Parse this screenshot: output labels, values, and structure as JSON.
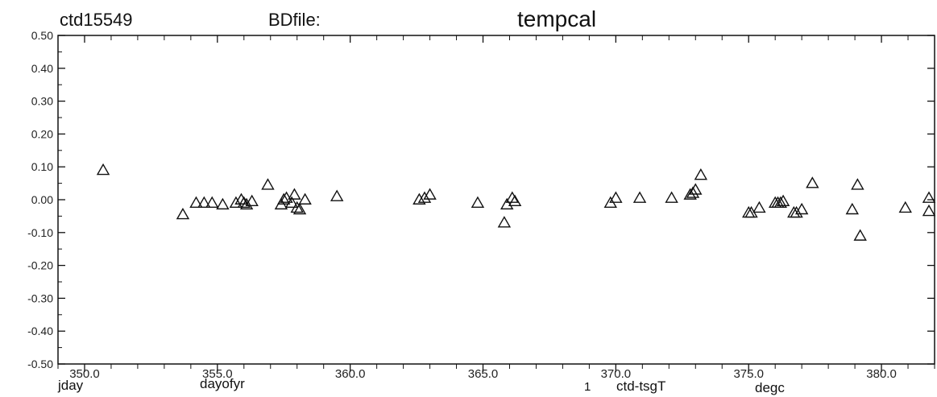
{
  "header": {
    "id_label": "ctd15549",
    "file_label": "BDfile:",
    "title": "tempcal"
  },
  "footer": {
    "x_unit_label": "jday",
    "x_name_label": "dayofyr",
    "series_index": "1",
    "series_name": "ctd-tsgT",
    "y_unit_label": "degc"
  },
  "chart_data": {
    "type": "scatter",
    "title": "tempcal",
    "xlabel": "dayofyr",
    "ylabel": "",
    "xlim": [
      349.0,
      382.0
    ],
    "ylim": [
      -0.5,
      0.5
    ],
    "x_ticks": [
      350.0,
      355.0,
      360.0,
      365.0,
      370.0,
      375.0,
      380.0
    ],
    "x_tick_labels": [
      "350.0",
      "355.0",
      "360.0",
      "365.0",
      "370.0",
      "375.0",
      "380.0"
    ],
    "y_ticks": [
      0.5,
      0.4,
      0.3,
      0.2,
      0.1,
      0.0,
      -0.1,
      -0.2,
      -0.3,
      -0.4,
      -0.5
    ],
    "y_tick_labels": [
      "0.50",
      "0.40",
      "0.30",
      "0.20",
      "0.10",
      "0.00",
      "-0.10",
      "-0.20",
      "-0.30",
      "-0.40",
      "-0.50"
    ],
    "marker": "triangle",
    "grid": false,
    "series": [
      {
        "name": "ctd-tsgT",
        "points": [
          [
            350.7,
            0.09
          ],
          [
            353.7,
            -0.045
          ],
          [
            354.2,
            -0.01
          ],
          [
            354.5,
            -0.01
          ],
          [
            354.8,
            -0.01
          ],
          [
            355.2,
            -0.015
          ],
          [
            355.7,
            -0.01
          ],
          [
            355.9,
            0.0
          ],
          [
            356.0,
            -0.01
          ],
          [
            356.1,
            -0.015
          ],
          [
            356.3,
            -0.005
          ],
          [
            356.9,
            0.045
          ],
          [
            357.4,
            -0.015
          ],
          [
            357.5,
            0.0
          ],
          [
            357.6,
            0.005
          ],
          [
            357.8,
            -0.01
          ],
          [
            357.9,
            0.015
          ],
          [
            358.0,
            -0.025
          ],
          [
            358.1,
            -0.03
          ],
          [
            358.3,
            0.0
          ],
          [
            359.5,
            0.01
          ],
          [
            362.6,
            0.0
          ],
          [
            362.8,
            0.005
          ],
          [
            363.0,
            0.015
          ],
          [
            364.8,
            -0.01
          ],
          [
            365.8,
            -0.07
          ],
          [
            365.9,
            -0.015
          ],
          [
            366.1,
            0.005
          ],
          [
            366.2,
            -0.005
          ],
          [
            369.8,
            -0.01
          ],
          [
            370.0,
            0.005
          ],
          [
            370.9,
            0.005
          ],
          [
            372.1,
            0.005
          ],
          [
            372.8,
            0.015
          ],
          [
            372.9,
            0.02
          ],
          [
            373.0,
            0.03
          ],
          [
            373.2,
            0.075
          ],
          [
            375.0,
            -0.04
          ],
          [
            375.1,
            -0.04
          ],
          [
            375.4,
            -0.025
          ],
          [
            376.0,
            -0.01
          ],
          [
            376.1,
            -0.01
          ],
          [
            376.2,
            -0.01
          ],
          [
            376.3,
            -0.005
          ],
          [
            376.7,
            -0.04
          ],
          [
            376.8,
            -0.04
          ],
          [
            377.0,
            -0.03
          ],
          [
            377.4,
            0.05
          ],
          [
            378.9,
            -0.03
          ],
          [
            379.1,
            0.045
          ],
          [
            379.2,
            -0.11
          ],
          [
            380.9,
            -0.025
          ],
          [
            381.8,
            0.005
          ],
          [
            382.0,
            -0.035
          ]
        ]
      }
    ]
  }
}
